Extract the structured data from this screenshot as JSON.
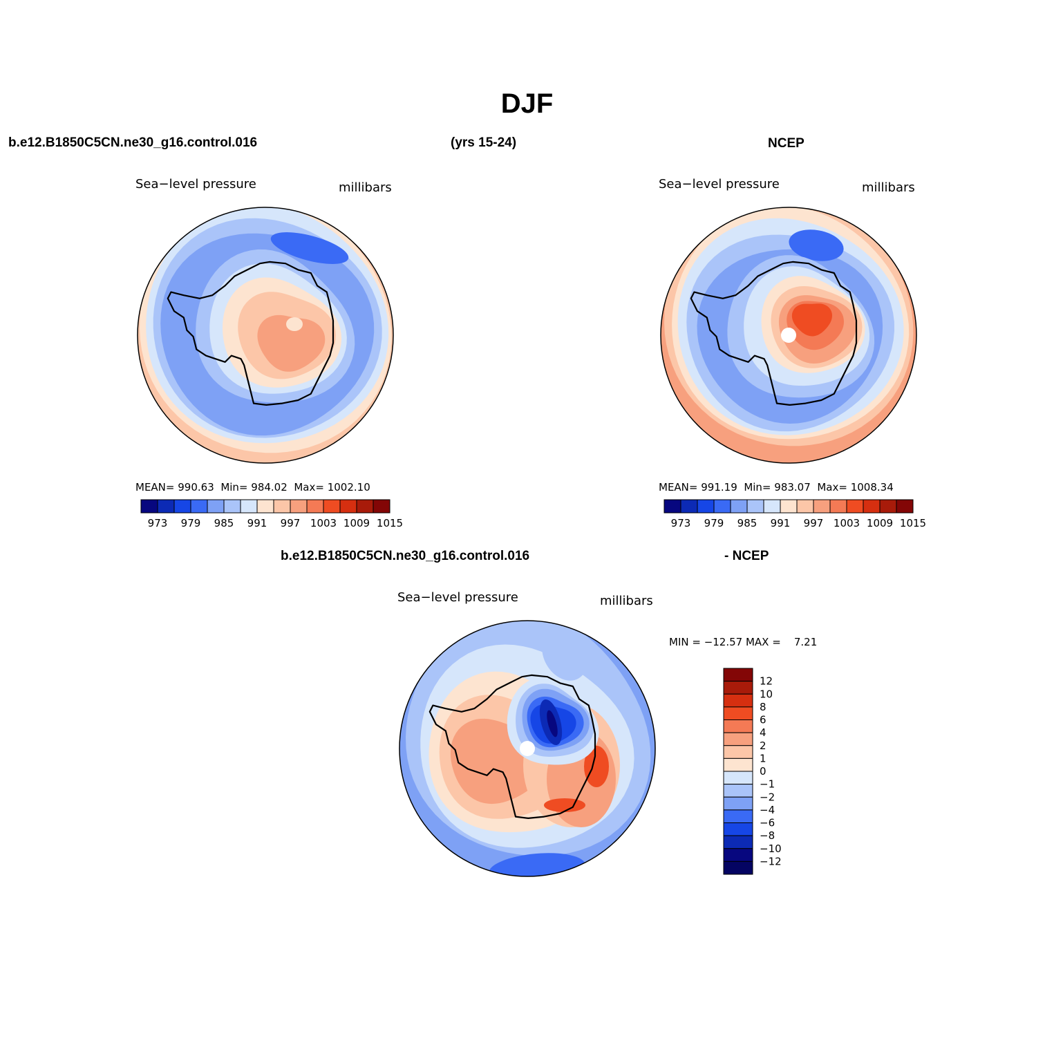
{
  "page": {
    "title": "DJF",
    "case_name": "b.e12.B1850C5CN.ne30_g16.control.016",
    "years": "(yrs 15-24)",
    "obs_name": "NCEP",
    "diff_case": "b.e12.B1850C5CN.ne30_g16.control.016",
    "diff_obs": "- NCEP"
  },
  "chart_data": [
    {
      "type": "contour-map",
      "projection": "south-polar-stereographic",
      "panel": "model",
      "left_title": "Sea−level pressure",
      "right_title": "millibars",
      "stats": {
        "mean_label": "MEAN=",
        "mean": "990.63",
        "min_label": "Min=",
        "min": "984.02",
        "max_label": "Max=",
        "max": "1002.10"
      },
      "colorbar": {
        "orientation": "horizontal",
        "levels": [
          970,
          973,
          976,
          979,
          982,
          985,
          988,
          991,
          994,
          997,
          1000,
          1003,
          1006,
          1009,
          1012,
          1015
        ],
        "tick_labels": [
          "973",
          "979",
          "985",
          "991",
          "997",
          "1003",
          "1009",
          "1015"
        ],
        "colors": [
          "#07077f",
          "#0c2ab5",
          "#1646e6",
          "#3a6af5",
          "#7ea1f5",
          "#aac4f9",
          "#d6e6fb",
          "#fde4d0",
          "#fcc6a8",
          "#f7a07e",
          "#f47a55",
          "#ef4c22",
          "#d62f10",
          "#a81b0a",
          "#830606"
        ]
      }
    },
    {
      "type": "contour-map",
      "projection": "south-polar-stereographic",
      "panel": "obs",
      "left_title": "Sea−level pressure",
      "right_title": "millibars",
      "stats": {
        "mean_label": "MEAN=",
        "mean": "991.19",
        "min_label": "Min=",
        "min": "983.07",
        "max_label": "Max=",
        "max": "1008.34"
      },
      "colorbar": {
        "orientation": "horizontal",
        "levels": [
          970,
          973,
          976,
          979,
          982,
          985,
          988,
          991,
          994,
          997,
          1000,
          1003,
          1006,
          1009,
          1012,
          1015
        ],
        "tick_labels": [
          "973",
          "979",
          "985",
          "991",
          "997",
          "1003",
          "1009",
          "1015"
        ],
        "colors": [
          "#07077f",
          "#0c2ab5",
          "#1646e6",
          "#3a6af5",
          "#7ea1f5",
          "#aac4f9",
          "#d6e6fb",
          "#fde4d0",
          "#fcc6a8",
          "#f7a07e",
          "#f47a55",
          "#ef4c22",
          "#d62f10",
          "#a81b0a",
          "#830606"
        ]
      }
    },
    {
      "type": "contour-map",
      "projection": "south-polar-stereographic",
      "panel": "difference",
      "left_title": "Sea−level pressure",
      "right_title": "millibars",
      "stats": {
        "text": "MIN = −12.57 MAX =    7.21"
      },
      "colorbar": {
        "orientation": "vertical",
        "levels": [
          12,
          10,
          8,
          6,
          4,
          2,
          1,
          0,
          -1,
          -2,
          -4,
          -6,
          -8,
          -10,
          -12
        ],
        "tick_labels": [
          "12",
          "10",
          "8",
          "6",
          "4",
          "2",
          "1",
          "0",
          "−1",
          "−2",
          "−4",
          "−6",
          "−8",
          "−10",
          "−12"
        ],
        "colors": [
          "#830606",
          "#a81b0a",
          "#d62f10",
          "#ef4c22",
          "#f47a55",
          "#f7a07e",
          "#fcc6a8",
          "#fde4d0",
          "#d6e6fb",
          "#aac4f9",
          "#7ea1f5",
          "#3a6af5",
          "#1646e6",
          "#0c2ab5",
          "#07077f",
          "#040462"
        ]
      }
    }
  ]
}
